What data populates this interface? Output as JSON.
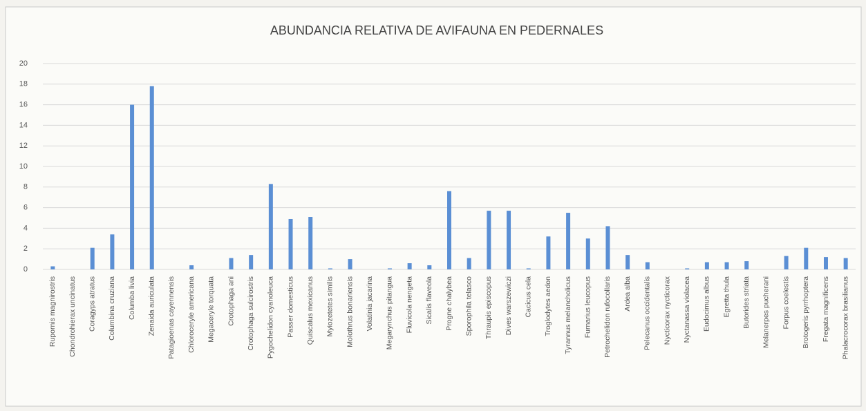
{
  "chart_data": {
    "type": "bar",
    "title": "ABUNDANCIA RELATIVA DE AVIFAUNA EN PEDERNALES",
    "categories": [
      "Rupornis magnirostris",
      "Chondrohierax uncinatus",
      "Coragyps atratus",
      "Columbina cruziana",
      "Columba livia",
      "Zenaida auriculata",
      "Patagioenas cayennensis",
      "Chloroceryle americana",
      "Megaceryle torquata",
      "Crotophaga ani",
      "Crotophaga sulcirostris",
      "Pygochelidon cyanoleuca",
      "Passer domesticus",
      "Quiscalus mexicanus",
      "Myiozetetes similis",
      "Molothrus bonariensis",
      "Volatinia jacarina",
      "Megarynchus pitangua",
      "Fluvicola nengeta",
      "Sicalis flaveola",
      "Progne chalybea",
      "Sporophila telasco",
      "Thraupis episcopus",
      "Dives warszewiczi",
      "Cacicus cela",
      "Troglodytes aedon",
      "Tyrannus melancholicus",
      "Furnarius leucopus",
      "Petrochelidon rufocollaris",
      "Ardea alba",
      "Pelecanus occidentalis",
      "Nycticorax nycticorax",
      "Nyctanassa violacea",
      "Eudocimus albus",
      "Egretta thula",
      "Butorides striata",
      "Melanerpes pucherani",
      "Forpus coelestis",
      "Brotogeris pyrrhoptera",
      "Fregata magnificens",
      "Phalacrocorax brasilianus"
    ],
    "values": [
      0.3,
      0,
      2.1,
      3.4,
      16,
      17.8,
      0,
      0.4,
      0,
      1.1,
      1.4,
      8.3,
      4.9,
      5.1,
      0.1,
      1.0,
      0,
      0.1,
      0.6,
      0.4,
      7.6,
      1.1,
      5.7,
      5.7,
      0.1,
      3.2,
      5.5,
      3.0,
      4.2,
      1.4,
      0.7,
      0,
      0.1,
      0.7,
      0.7,
      0.8,
      0,
      1.3,
      2.1,
      1.2,
      1.1
    ],
    "color": "#5b8fd4",
    "ylim": [
      0,
      20
    ],
    "yticks": [
      0,
      2,
      4,
      6,
      8,
      10,
      12,
      14,
      16,
      18,
      20
    ],
    "grid": true
  }
}
